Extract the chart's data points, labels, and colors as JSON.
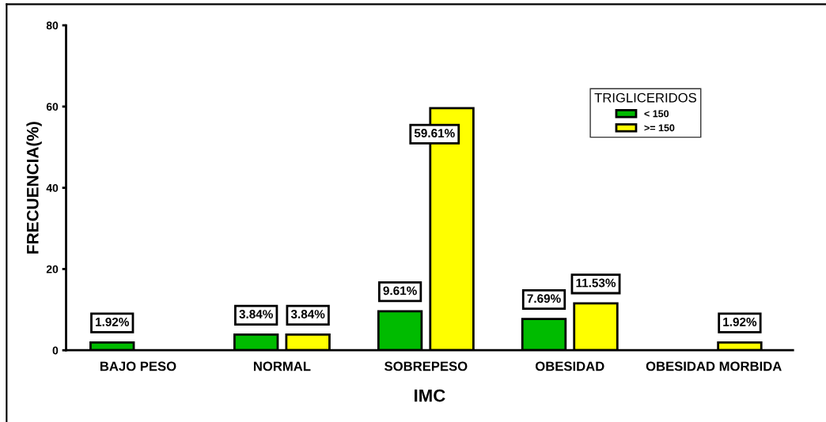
{
  "chart_data": {
    "type": "bar",
    "xlabel": "IMC",
    "ylabel": "FRECUENCIA(%)",
    "legend_title": "TRIGLICERIDOS",
    "categories": [
      "BAJO PESO",
      "NORMAL",
      "SOBREPESO",
      "OBESIDAD",
      "OBESIDAD MORBIDA"
    ],
    "series": [
      {
        "name": "< 150",
        "color": "#00bb00",
        "values": [
          1.92,
          3.84,
          9.61,
          7.69,
          null
        ],
        "value_labels": [
          "1.92%",
          "3.84%",
          "9.61%",
          "7.69%",
          null
        ]
      },
      {
        "name": ">= 150",
        "color": "#ffff00",
        "values": [
          null,
          3.84,
          59.61,
          11.53,
          1.92
        ],
        "value_labels": [
          null,
          "3.84%",
          "59.61%",
          "11.53%",
          "1.92%"
        ]
      }
    ],
    "ylim": [
      0,
      80
    ],
    "yticks": [
      0,
      20,
      40,
      60,
      80
    ],
    "grid": false,
    "legend": "top right"
  }
}
